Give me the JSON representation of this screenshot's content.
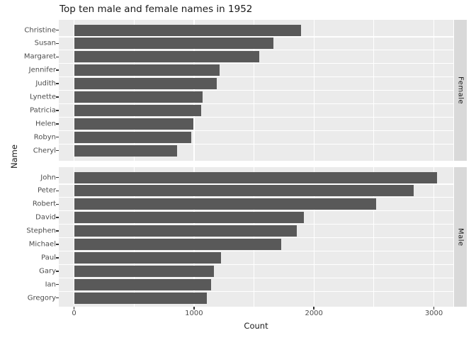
{
  "title": "Top ten male and female names in 1952",
  "axes": {
    "x_label": "Count",
    "y_label": "Name",
    "x_tick_labels": [
      "0",
      "1000",
      "2000",
      "3000"
    ]
  },
  "colors": {
    "bar": "#595959",
    "panel_background": "#EBEBEB",
    "strip_background": "#D9D9D9",
    "gridline": "#FFFFFF",
    "axis_text": "#4D4D4D",
    "title_text": "#1A1A1A",
    "tick_mark": "#333333",
    "figure_background": "#FFFFFF"
  },
  "chart_data": {
    "type": "bar",
    "orientation": "horizontal",
    "title": "Top ten male and female names in 1952",
    "xlabel": "Count",
    "ylabel": "Name",
    "xlim": [
      0,
      3160
    ],
    "x_ticks": [
      0,
      1000,
      2000,
      3000
    ],
    "x_minor_gridlines": [
      500,
      1500,
      2500
    ],
    "grid": true,
    "legend_position": "none",
    "facet_strip_position": "right",
    "facets": [
      {
        "label": "Female",
        "categories": [
          "Christine",
          "Susan",
          "Margaret",
          "Jennifer",
          "Judith",
          "Lynette",
          "Patricia",
          "Helen",
          "Robyn",
          "Cheryl"
        ],
        "values": [
          1895,
          1660,
          1545,
          1215,
          1190,
          1070,
          1060,
          995,
          975,
          860
        ]
      },
      {
        "label": "Male",
        "categories": [
          "John",
          "Peter",
          "Robert",
          "David",
          "Stephen",
          "Michael",
          "Paul",
          "Gary",
          "Ian",
          "Gregory"
        ],
        "values": [
          3025,
          2830,
          2520,
          1915,
          1860,
          1730,
          1225,
          1165,
          1140,
          1110
        ]
      }
    ]
  }
}
